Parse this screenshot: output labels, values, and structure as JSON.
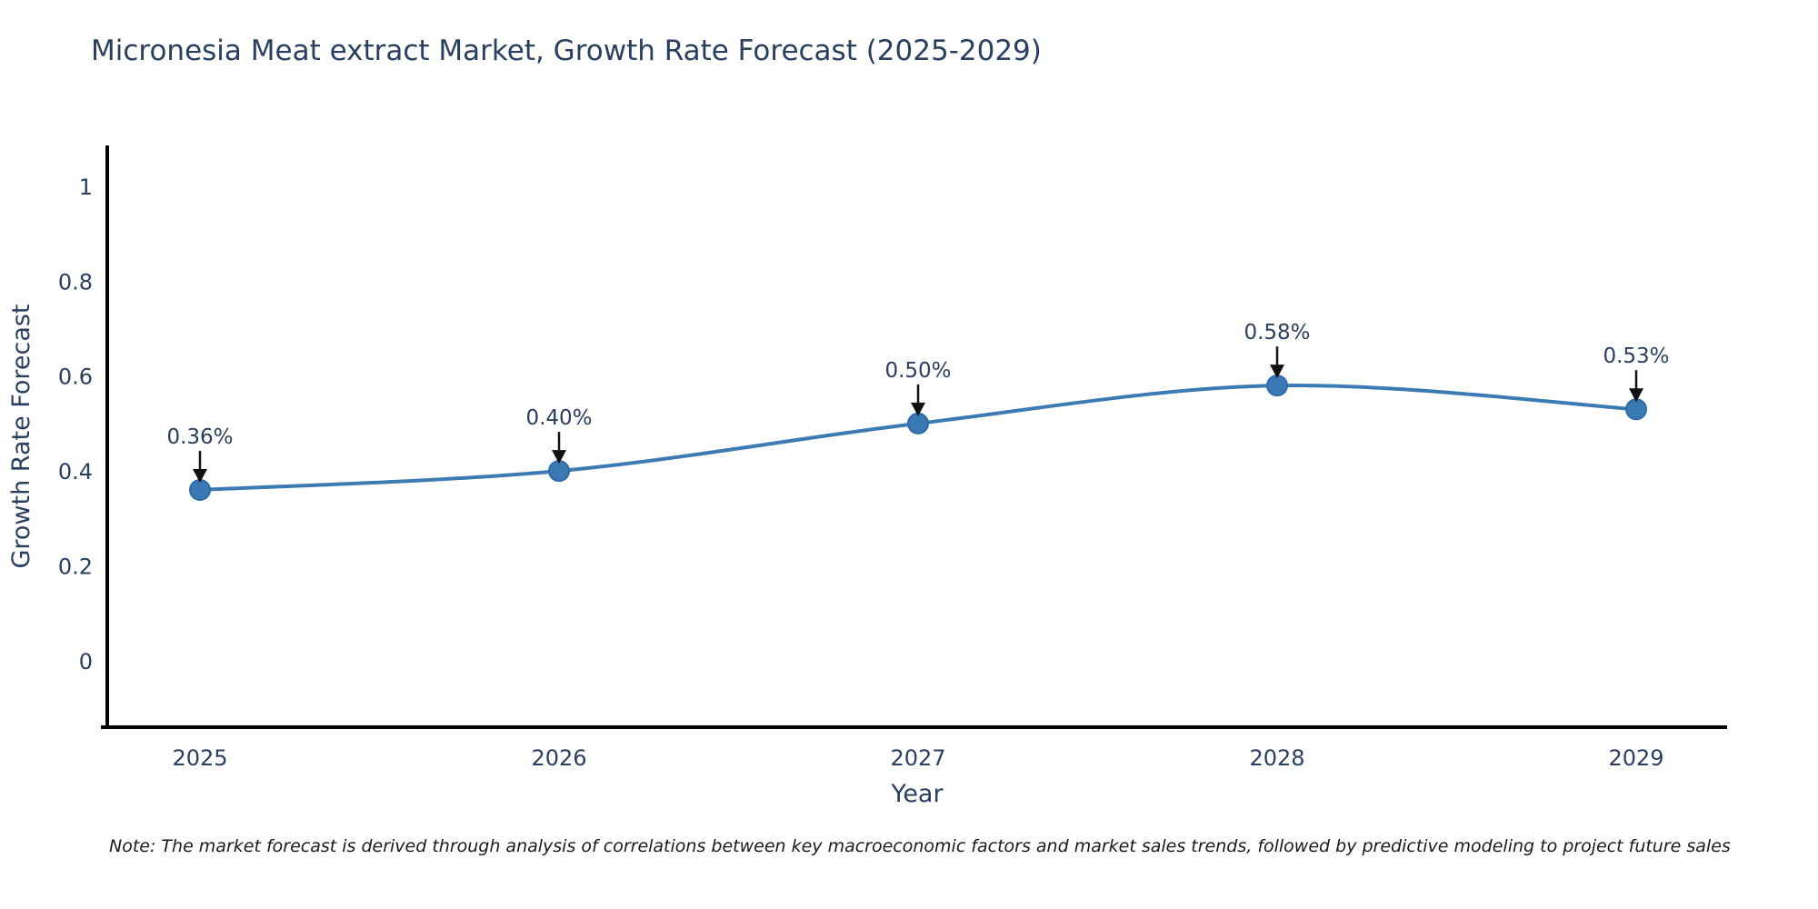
{
  "footnote": {
    "text": "Note: The market forecast is derived through analysis of correlations between key macroeconomic factors and market sales trends, followed by predictive modeling to project future sales"
  },
  "chart_data": {
    "type": "line",
    "title": "Micronesia Meat extract Market, Growth Rate Forecast (2025-2029)",
    "xlabel": "Year",
    "ylabel": "Growth Rate Forecast",
    "categories": [
      "2025",
      "2026",
      "2027",
      "2028",
      "2029"
    ],
    "series": [
      {
        "name": "Growth Rate Forecast",
        "values": [
          0.36,
          0.4,
          0.5,
          0.58,
          0.53
        ]
      }
    ],
    "point_labels": [
      "0.36%",
      "0.40%",
      "0.50%",
      "0.58%",
      "0.53%"
    ],
    "ytick_labels": [
      "0",
      "0.2",
      "0.4",
      "0.6",
      "0.8",
      "1"
    ],
    "yticks": [
      0,
      0.2,
      0.4,
      0.6,
      0.8,
      1
    ],
    "ylim": [
      -0.14,
      1.086
    ],
    "line_shape": "spline",
    "grid": false,
    "legend": "none",
    "colors": {
      "line": "#3c7ab4",
      "marker_fill": "#3b79b5",
      "marker_stroke": "#2e6ba8",
      "axis": "#000000",
      "text": "#2a3f5f",
      "annotation_text": "#2a3f5f",
      "annotation_arrow": "#111111"
    }
  }
}
